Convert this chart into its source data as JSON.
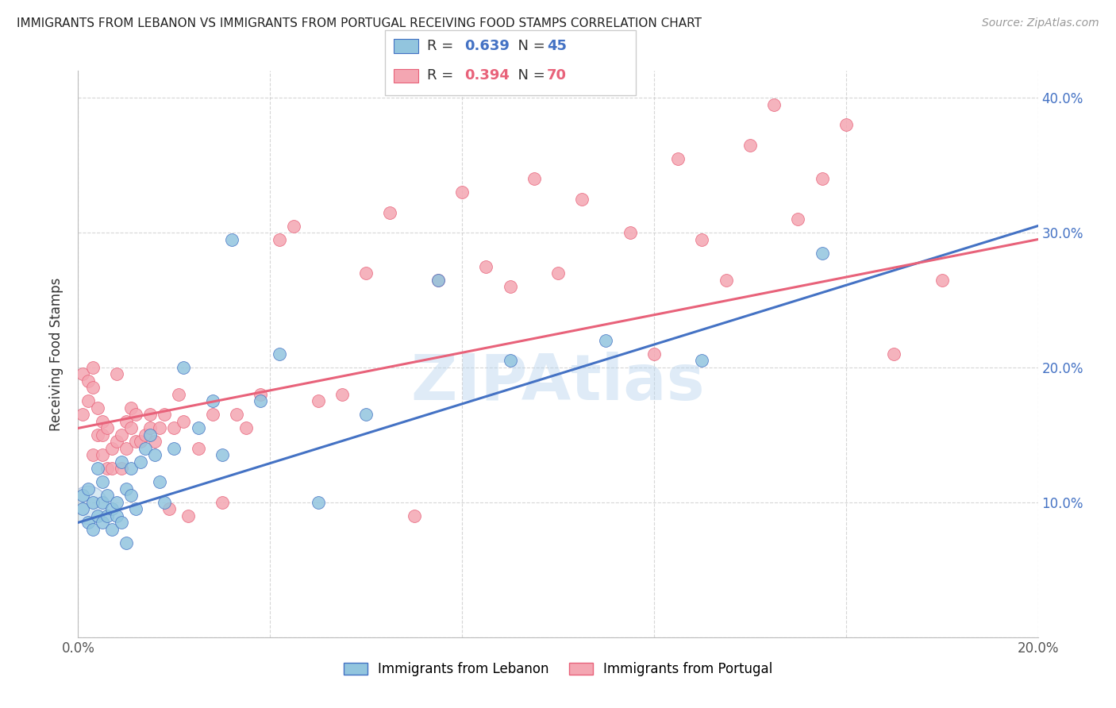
{
  "title": "IMMIGRANTS FROM LEBANON VS IMMIGRANTS FROM PORTUGAL RECEIVING FOOD STAMPS CORRELATION CHART",
  "source": "Source: ZipAtlas.com",
  "ylabel": "Receiving Food Stamps",
  "xlim": [
    0.0,
    0.2
  ],
  "ylim": [
    0.0,
    0.42
  ],
  "r_lebanon": 0.639,
  "n_lebanon": 45,
  "r_portugal": 0.394,
  "n_portugal": 70,
  "color_lebanon": "#92c5de",
  "color_portugal": "#f4a6b2",
  "trendline_color_lebanon": "#4472c4",
  "trendline_color_portugal": "#e8627a",
  "lebanon_x": [
    0.001,
    0.001,
    0.002,
    0.002,
    0.003,
    0.003,
    0.004,
    0.004,
    0.005,
    0.005,
    0.005,
    0.006,
    0.006,
    0.007,
    0.007,
    0.008,
    0.008,
    0.009,
    0.009,
    0.01,
    0.01,
    0.011,
    0.011,
    0.012,
    0.013,
    0.014,
    0.015,
    0.016,
    0.017,
    0.018,
    0.02,
    0.022,
    0.025,
    0.028,
    0.03,
    0.032,
    0.038,
    0.042,
    0.05,
    0.06,
    0.075,
    0.09,
    0.11,
    0.13,
    0.155
  ],
  "lebanon_y": [
    0.095,
    0.105,
    0.085,
    0.11,
    0.08,
    0.1,
    0.09,
    0.125,
    0.085,
    0.1,
    0.115,
    0.09,
    0.105,
    0.08,
    0.095,
    0.09,
    0.1,
    0.085,
    0.13,
    0.11,
    0.07,
    0.105,
    0.125,
    0.095,
    0.13,
    0.14,
    0.15,
    0.135,
    0.115,
    0.1,
    0.14,
    0.2,
    0.155,
    0.175,
    0.135,
    0.295,
    0.175,
    0.21,
    0.1,
    0.165,
    0.265,
    0.205,
    0.22,
    0.205,
    0.285
  ],
  "portugal_x": [
    0.001,
    0.001,
    0.002,
    0.002,
    0.003,
    0.003,
    0.003,
    0.004,
    0.004,
    0.005,
    0.005,
    0.005,
    0.006,
    0.006,
    0.007,
    0.007,
    0.008,
    0.008,
    0.009,
    0.009,
    0.01,
    0.01,
    0.011,
    0.011,
    0.012,
    0.012,
    0.013,
    0.014,
    0.015,
    0.015,
    0.016,
    0.017,
    0.018,
    0.019,
    0.02,
    0.021,
    0.022,
    0.023,
    0.025,
    0.028,
    0.03,
    0.033,
    0.035,
    0.038,
    0.042,
    0.045,
    0.05,
    0.055,
    0.06,
    0.065,
    0.07,
    0.075,
    0.08,
    0.085,
    0.09,
    0.095,
    0.1,
    0.105,
    0.115,
    0.12,
    0.125,
    0.13,
    0.135,
    0.14,
    0.145,
    0.15,
    0.155,
    0.16,
    0.17,
    0.18
  ],
  "portugal_y": [
    0.165,
    0.195,
    0.175,
    0.19,
    0.135,
    0.185,
    0.2,
    0.15,
    0.17,
    0.135,
    0.15,
    0.16,
    0.125,
    0.155,
    0.125,
    0.14,
    0.145,
    0.195,
    0.125,
    0.15,
    0.14,
    0.16,
    0.155,
    0.17,
    0.145,
    0.165,
    0.145,
    0.15,
    0.155,
    0.165,
    0.145,
    0.155,
    0.165,
    0.095,
    0.155,
    0.18,
    0.16,
    0.09,
    0.14,
    0.165,
    0.1,
    0.165,
    0.155,
    0.18,
    0.295,
    0.305,
    0.175,
    0.18,
    0.27,
    0.315,
    0.09,
    0.265,
    0.33,
    0.275,
    0.26,
    0.34,
    0.27,
    0.325,
    0.3,
    0.21,
    0.355,
    0.295,
    0.265,
    0.365,
    0.395,
    0.31,
    0.34,
    0.38,
    0.21,
    0.265
  ],
  "trendline_lb_x0": 0.0,
  "trendline_lb_y0": 0.085,
  "trendline_lb_x1": 0.2,
  "trendline_lb_y1": 0.305,
  "trendline_pt_x0": 0.0,
  "trendline_pt_y0": 0.155,
  "trendline_pt_x1": 0.2,
  "trendline_pt_y1": 0.295
}
